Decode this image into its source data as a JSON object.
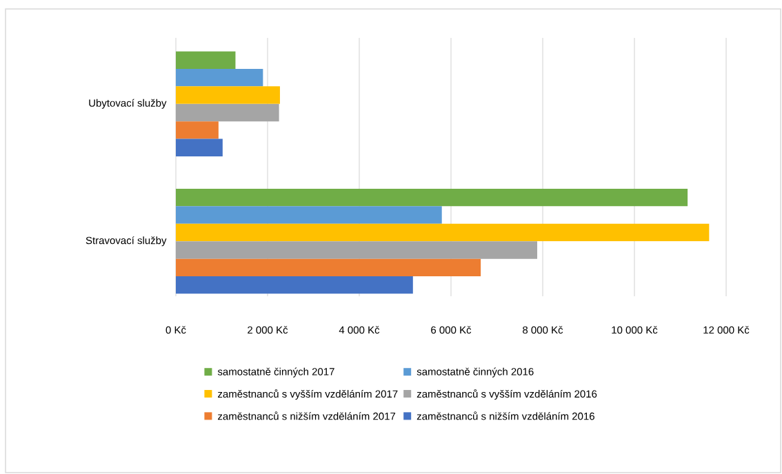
{
  "chart_data": {
    "type": "bar",
    "orientation": "horizontal",
    "categories": [
      "Ubytovací služby",
      "Stravovací služby"
    ],
    "series": [
      {
        "name": "samostatně činných 2017",
        "color": "#70ad47",
        "values": [
          1300,
          11160
        ]
      },
      {
        "name": "samostatně činných 2016",
        "color": "#5b9bd5",
        "values": [
          1900,
          5800
        ]
      },
      {
        "name": "zaměstnanců s vyšším vzděláním 2017",
        "color": "#ffc000",
        "values": [
          2270,
          11630
        ]
      },
      {
        "name": "zaměstnanců s vyšším vzděláním 2016",
        "color": "#a5a5a5",
        "values": [
          2250,
          7880
        ]
      },
      {
        "name": "zaměstnanců s nižším vzděláním 2017",
        "color": "#ed7d31",
        "values": [
          930,
          6650
        ]
      },
      {
        "name": "zaměstnanců s nižším vzděláním 2016",
        "color": "#4472c4",
        "values": [
          1020,
          5170
        ]
      }
    ],
    "xlim": [
      0,
      12000
    ],
    "xticks": [
      {
        "value": 0,
        "label": "0 Kč"
      },
      {
        "value": 2000,
        "label": "2 000 Kč"
      },
      {
        "value": 4000,
        "label": "4 000 Kč"
      },
      {
        "value": 6000,
        "label": "6 000 Kč"
      },
      {
        "value": 8000,
        "label": "8 000 Kč"
      },
      {
        "value": 10000,
        "label": "10 000 Kč"
      },
      {
        "value": 12000,
        "label": "12 000 Kč"
      }
    ],
    "grid": "x",
    "legend": "bottom"
  }
}
